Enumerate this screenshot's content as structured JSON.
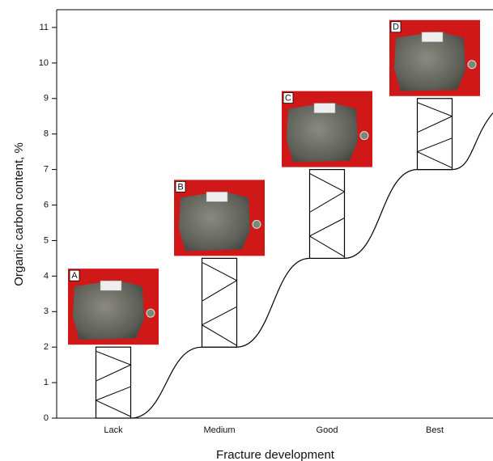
{
  "chart_data": {
    "type": "floating-bar",
    "categories": [
      "Lack",
      "Medium",
      "Good",
      "Best"
    ],
    "low": [
      0,
      2,
      4.5,
      7
    ],
    "high": [
      2,
      4.5,
      7,
      9
    ],
    "photo_labels": [
      "A",
      "B",
      "C",
      "D"
    ],
    "x_label": "Fracture development",
    "y_label": "Organic carbon content, %",
    "ylim": [
      0,
      11.5
    ],
    "yticks": [
      0,
      1,
      2,
      3,
      4,
      5,
      6,
      7,
      8,
      9,
      10,
      11
    ],
    "color": "#ffffff"
  }
}
